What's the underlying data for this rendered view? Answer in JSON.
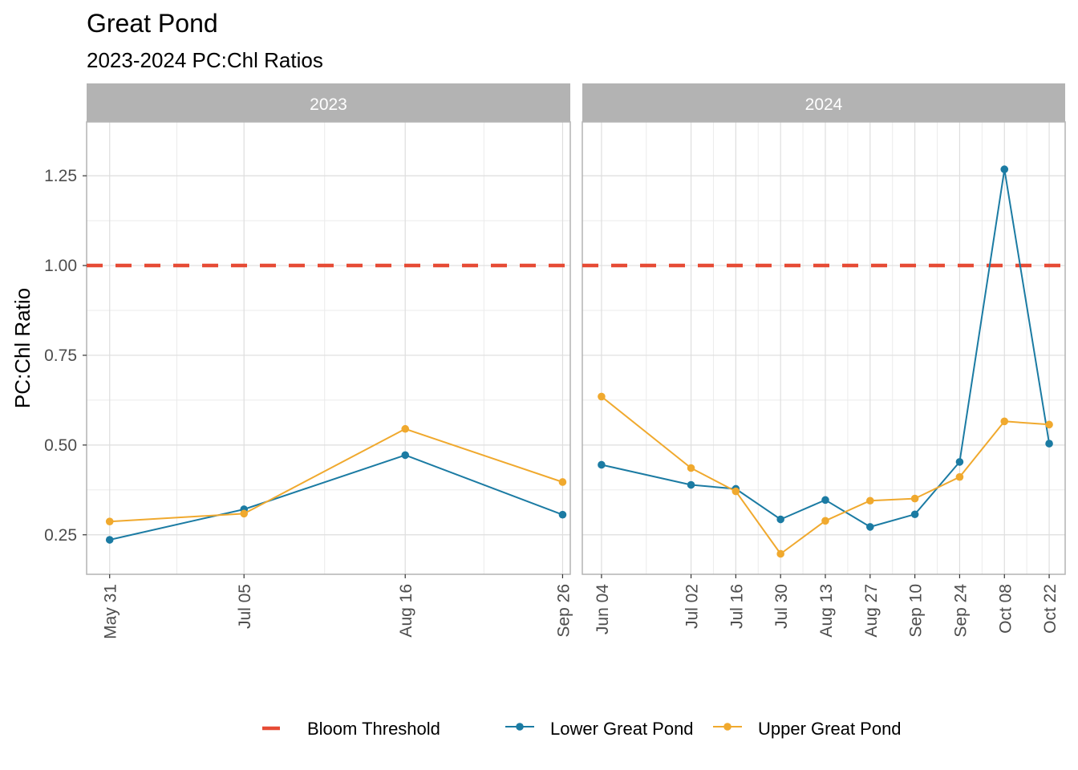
{
  "chart_data": {
    "type": "line",
    "title": "Great Pond",
    "subtitle": "2023-2024 PC:Chl Ratios",
    "ylabel": "PC:Chl Ratio",
    "xlabel": "",
    "ylim": [
      0.14,
      1.4
    ],
    "yticks": [
      0.25,
      0.5,
      0.75,
      1.0,
      1.25
    ],
    "ytick_labels": [
      "0.25",
      "0.50",
      "0.75",
      "1.00",
      "1.25"
    ],
    "grid": true,
    "legend_position": "bottom",
    "threshold": {
      "name": "Bloom Threshold",
      "value": 1.0,
      "color": "#E64B35"
    },
    "series_styles": [
      {
        "name": "Lower Great Pond",
        "color": "#1B7BA3"
      },
      {
        "name": "Upper Great Pond",
        "color": "#F0A92E"
      }
    ],
    "panels": [
      {
        "strip": "2023",
        "xlim": [
          "2023-05-25",
          "2023-09-28"
        ],
        "x": [
          "2023-05-31",
          "2023-07-05",
          "2023-08-16",
          "2023-09-26"
        ],
        "x_labels": [
          "May 31",
          "Jul 05",
          "Aug 16",
          "Sep 26"
        ],
        "series": [
          {
            "name": "Lower Great Pond",
            "values": [
              0.236,
              0.321,
              0.472,
              0.306
            ]
          },
          {
            "name": "Upper Great Pond",
            "values": [
              0.287,
              0.309,
              0.545,
              0.397
            ]
          }
        ]
      },
      {
        "strip": "2024",
        "xlim": [
          "2024-05-29",
          "2024-10-27"
        ],
        "x": [
          "2024-06-04",
          "2024-07-02",
          "2024-07-16",
          "2024-07-30",
          "2024-08-13",
          "2024-08-27",
          "2024-09-10",
          "2024-09-24",
          "2024-10-08",
          "2024-10-22"
        ],
        "x_labels": [
          "Jun 04",
          "Jul 02",
          "Jul 16",
          "Jul 30",
          "Aug 13",
          "Aug 27",
          "Sep 10",
          "Sep 24",
          "Oct 08",
          "Oct 22"
        ],
        "series": [
          {
            "name": "Lower Great Pond",
            "values": [
              0.445,
              0.389,
              0.378,
              0.293,
              0.347,
              0.272,
              0.307,
              0.453,
              1.268,
              0.504
            ]
          },
          {
            "name": "Upper Great Pond",
            "values": [
              0.635,
              0.436,
              0.371,
              0.197,
              0.289,
              0.345,
              0.351,
              0.411,
              0.566,
              0.557
            ]
          }
        ]
      }
    ]
  }
}
